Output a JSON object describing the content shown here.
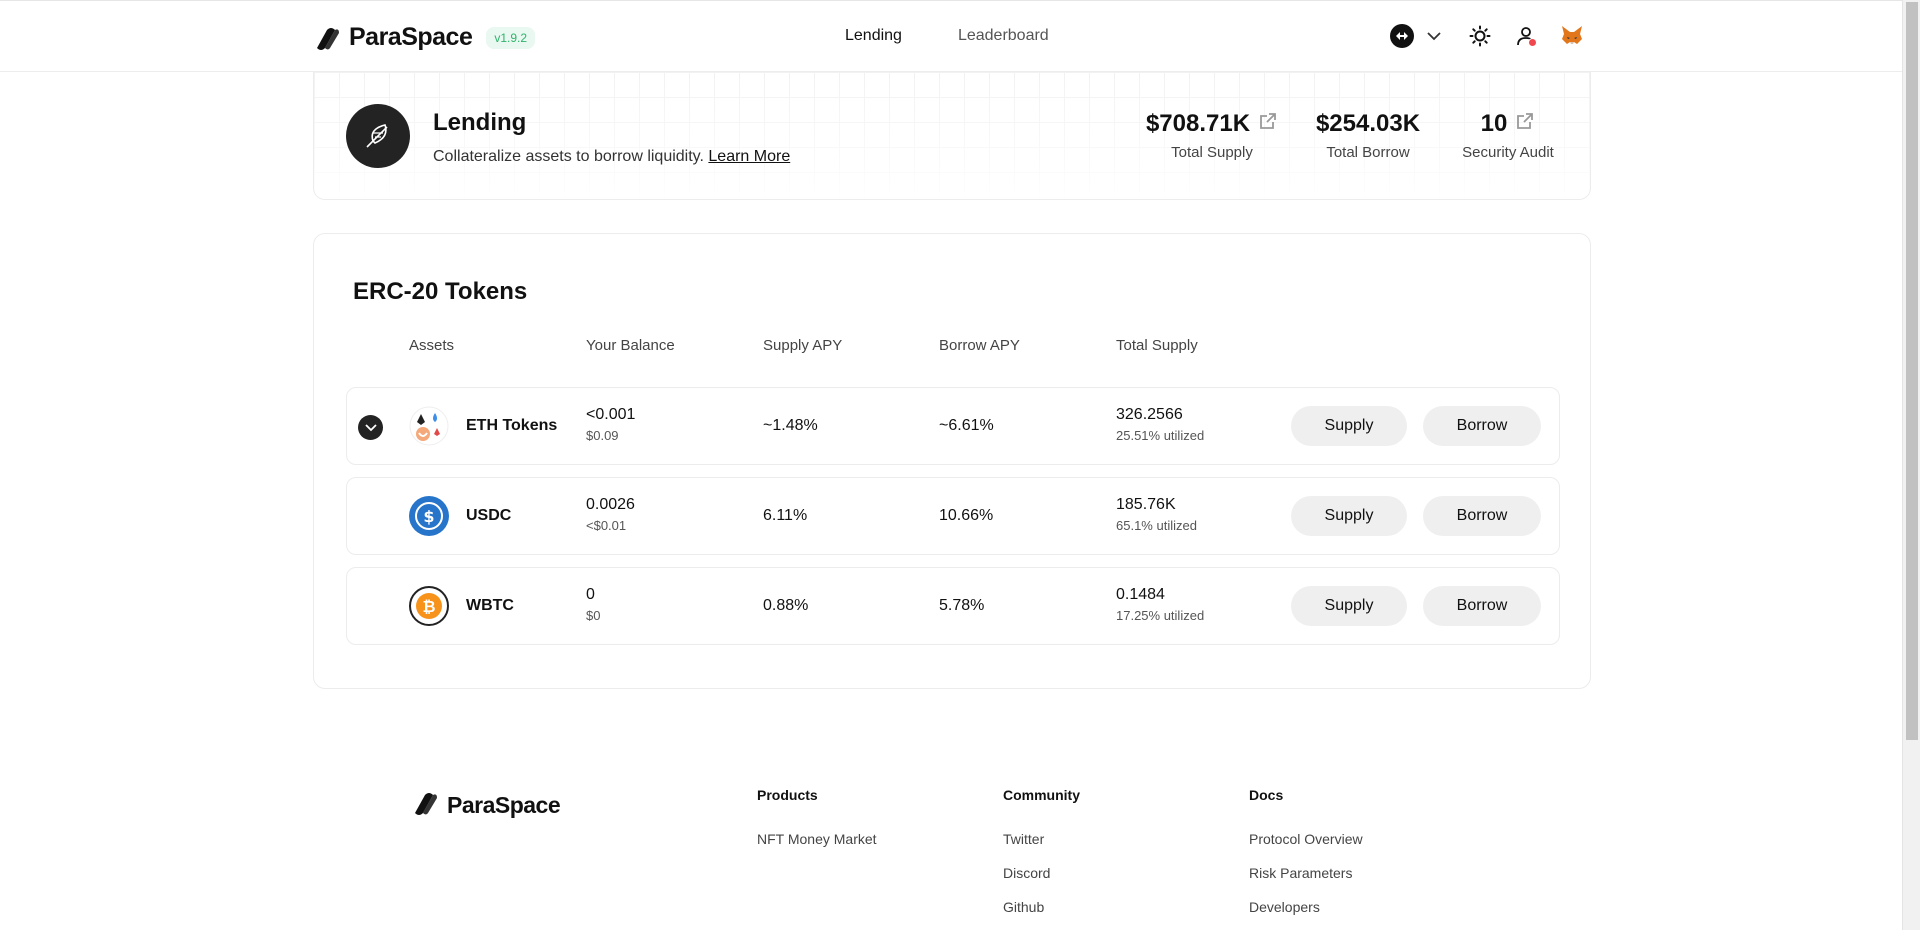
{
  "header": {
    "brand": "ParaSpace",
    "version": "v1.9.2",
    "nav": [
      {
        "label": "Lending",
        "active": true
      },
      {
        "label": "Leaderboard",
        "active": false
      }
    ],
    "icons": [
      "network-switch-icon",
      "chevron-down-icon",
      "theme-sun-icon",
      "account-icon",
      "metamask-fox-icon"
    ]
  },
  "hero": {
    "title": "Lending",
    "subtitle": "Collateralize assets to borrow liquidity.",
    "learn_more": "Learn More",
    "stats": [
      {
        "value": "$708.71K",
        "label": "Total Supply",
        "link": true
      },
      {
        "value": "$254.03K",
        "label": "Total Borrow",
        "link": false
      },
      {
        "value": "10",
        "label": "Security Audit",
        "link": true
      }
    ]
  },
  "table": {
    "title": "ERC-20 Tokens",
    "columns": [
      "Assets",
      "Your Balance",
      "Supply APY",
      "Borrow APY",
      "Total Supply"
    ],
    "supply_label": "Supply",
    "borrow_label": "Borrow",
    "rows": [
      {
        "name": "ETH Tokens",
        "icon": "eth-tokens-icon",
        "balance": "<0.001",
        "balance_usd": "$0.09",
        "supply_apy": "~1.48%",
        "borrow_apy": "~6.61%",
        "total_supply": "326.2566",
        "utilized": "25.51% utilized",
        "expandable": true
      },
      {
        "name": "USDC",
        "icon": "usdc-icon",
        "balance": "0.0026",
        "balance_usd": "<$0.01",
        "supply_apy": "6.11%",
        "borrow_apy": "10.66%",
        "total_supply": "185.76K",
        "utilized": "65.1% utilized",
        "expandable": false
      },
      {
        "name": "WBTC",
        "icon": "wbtc-icon",
        "balance": "0",
        "balance_usd": "$0",
        "supply_apy": "0.88%",
        "borrow_apy": "5.78%",
        "total_supply": "0.1484",
        "utilized": "17.25% utilized",
        "expandable": false
      }
    ]
  },
  "footer": {
    "brand": "ParaSpace",
    "columns": [
      {
        "heading": "Products",
        "links": [
          "NFT Money Market"
        ]
      },
      {
        "heading": "Community",
        "links": [
          "Twitter",
          "Discord",
          "Github"
        ]
      },
      {
        "heading": "Docs",
        "links": [
          "Protocol Overview",
          "Risk Parameters",
          "Developers"
        ]
      }
    ]
  },
  "colors": {
    "accent_green": "#2fb36c",
    "dark": "#232323",
    "button_bg": "#efefef",
    "usdc_blue": "#2775ca",
    "btc_orange": "#f7931a",
    "notification_red": "#f0484e"
  }
}
